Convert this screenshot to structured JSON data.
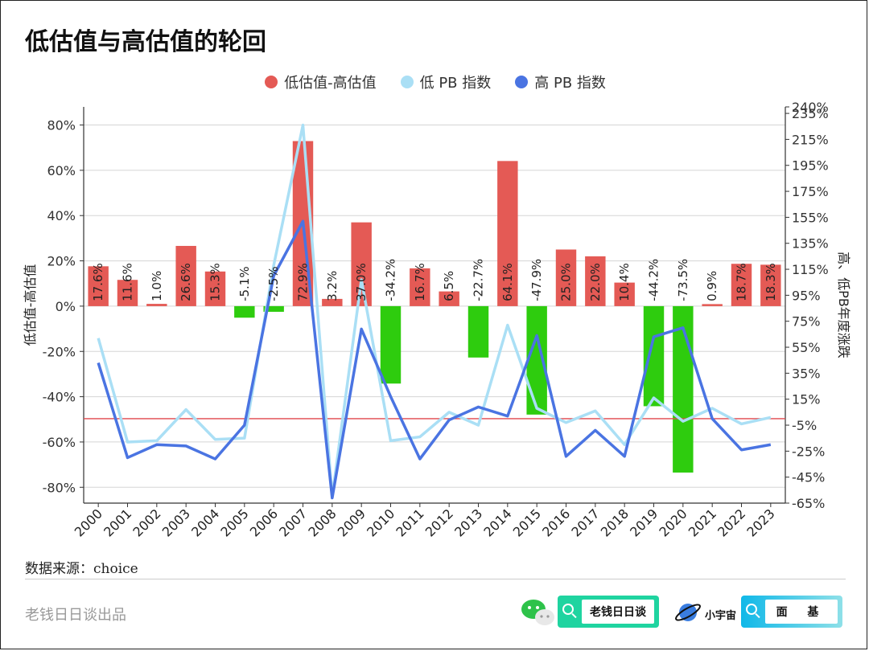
{
  "title": "低估值与高估值的轮回",
  "legend": [
    {
      "label": "低估值-高估值",
      "color": "#e45a55"
    },
    {
      "label": "低 PB 指数",
      "color": "#aadff5"
    },
    {
      "label": "高 PB 指数",
      "color": "#4a74e2"
    }
  ],
  "source": "数据来源：choice",
  "producer": "老钱日日谈出品",
  "badges": {
    "account": "老钱日日谈",
    "planet": "小宇宙",
    "face": "面 基"
  },
  "chart_data": {
    "type": "bar+line",
    "categories": [
      "2000",
      "2001",
      "2002",
      "2003",
      "2004",
      "2005",
      "2006",
      "2007",
      "2008",
      "2009",
      "2010",
      "2011",
      "2012",
      "2013",
      "2014",
      "2015",
      "2016",
      "2017",
      "2018",
      "2019",
      "2020",
      "2021",
      "2022",
      "2023"
    ],
    "bar_series": {
      "name": "低估值-高估值",
      "values": [
        17.6,
        11.6,
        1.0,
        26.6,
        15.3,
        -5.1,
        -2.5,
        72.9,
        3.2,
        37.0,
        -34.2,
        16.7,
        6.5,
        -22.7,
        64.1,
        -47.9,
        25.0,
        22.0,
        10.4,
        -44.2,
        -73.5,
        0.9,
        18.7,
        18.3
      ],
      "labels": [
        "17.6%",
        "11.6%",
        "1.0%",
        "26.6%",
        "15.3%",
        "-5.1%",
        "-2.5%",
        "72.9%",
        "3.2%",
        "37.0%",
        "-34.2%",
        "16.7%",
        "6.5%",
        "-22.7%",
        "64.1%",
        "-47.9%",
        "25.0%",
        "22.0%",
        "10.4%",
        "-44.2%",
        "-73.5%",
        "0.9%",
        "18.7%",
        "18.3%"
      ],
      "positive_color": "#e45a55",
      "negative_color": "#2ecc0e"
    },
    "line_series": [
      {
        "name": "低 PB 指数",
        "color": "#aadff5",
        "values": [
          62,
          -18,
          -17,
          7,
          -16,
          -15,
          118,
          226,
          -60,
          107,
          -17,
          -14,
          5,
          -5,
          72,
          8,
          -3,
          6,
          -20,
          16,
          -2,
          8,
          -4,
          1
        ]
      },
      {
        "name": "高 PB 指数",
        "color": "#4a74e2",
        "values": [
          43,
          -30,
          -20,
          -21,
          -31,
          -5,
          110,
          152,
          -61,
          69,
          17,
          -31,
          -1,
          9,
          2,
          64,
          -29,
          -9,
          -29,
          63,
          70,
          0,
          -24,
          -20
        ]
      }
    ],
    "left_axis": {
      "label": "低估值-高估值",
      "ticks": [
        "80%",
        "60%",
        "40%",
        "20%",
        "0%",
        "-20%",
        "-40%",
        "-60%",
        "-80%"
      ],
      "tick_values": [
        80,
        60,
        40,
        20,
        0,
        -20,
        -40,
        -60,
        -80
      ],
      "range": [
        -87,
        88
      ]
    },
    "right_axis": {
      "label": "高、低PB年度涨跌",
      "ticks": [
        "240%",
        "235%",
        "215%",
        "195%",
        "175%",
        "155%",
        "135%",
        "115%",
        "95%",
        "75%",
        "55%",
        "35%",
        "15%",
        "-5%",
        "-25%",
        "-45%",
        "-65%"
      ],
      "tick_values": [
        240,
        235,
        215,
        195,
        175,
        155,
        135,
        115,
        95,
        75,
        55,
        35,
        15,
        -5,
        -25,
        -45,
        -65
      ],
      "range": [
        -65,
        240
      ]
    },
    "reference_line": {
      "axis": "right",
      "value": 0,
      "color": "#e0474c"
    },
    "grid": true
  }
}
